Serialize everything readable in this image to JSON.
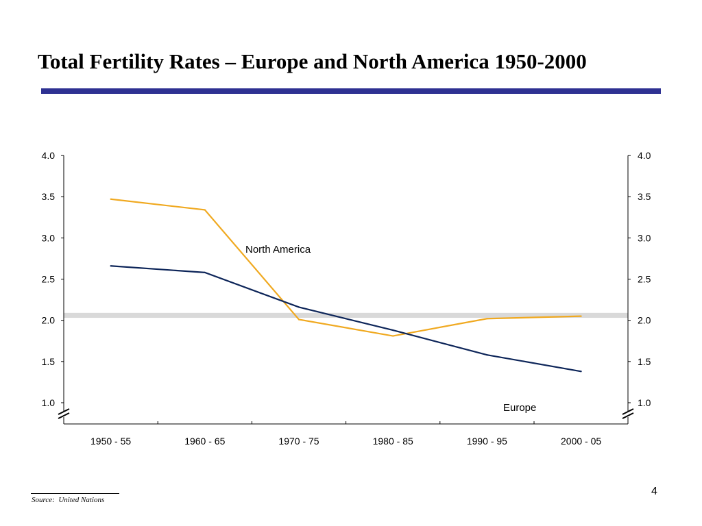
{
  "slide": {
    "title": "Total Fertility Rates – Europe and North America 1950-2000",
    "source_label": "Source:",
    "source_name": "United Nations",
    "page_number": "4"
  },
  "colors": {
    "title_rule": "#2e3192",
    "europe": "#0d2559",
    "north_america": "#f0a920",
    "reference_band": "#d9d9d9",
    "axis": "#000000"
  },
  "chart_data": {
    "type": "line",
    "title": "",
    "xlabel": "",
    "ylabel": "",
    "categories": [
      "1950 - 55",
      "1960 - 65",
      "1970 - 75",
      "1980 - 85",
      "1990 - 95",
      "2000 - 05"
    ],
    "ylim": [
      1.0,
      4.0
    ],
    "y_ticks": [
      4.0,
      3.5,
      3.0,
      2.5,
      2.0,
      1.5,
      1.0
    ],
    "y_tick_labels": [
      "4.0",
      "3.5",
      "3.0",
      "2.5",
      "2.0",
      "1.5",
      "1.0"
    ],
    "axes": "left and right",
    "axis_breaks": true,
    "grid": false,
    "legend": "none (series labeled directly on chart)",
    "reference_band": {
      "y_from": 2.03,
      "y_to": 2.09
    },
    "series": [
      {
        "name": "North America",
        "color": "#f0a920",
        "values": [
          3.47,
          3.34,
          2.01,
          1.81,
          2.02,
          2.05
        ]
      },
      {
        "name": "Europe",
        "color": "#0d2559",
        "values": [
          2.66,
          2.58,
          2.16,
          1.88,
          1.58,
          1.38
        ]
      }
    ]
  }
}
